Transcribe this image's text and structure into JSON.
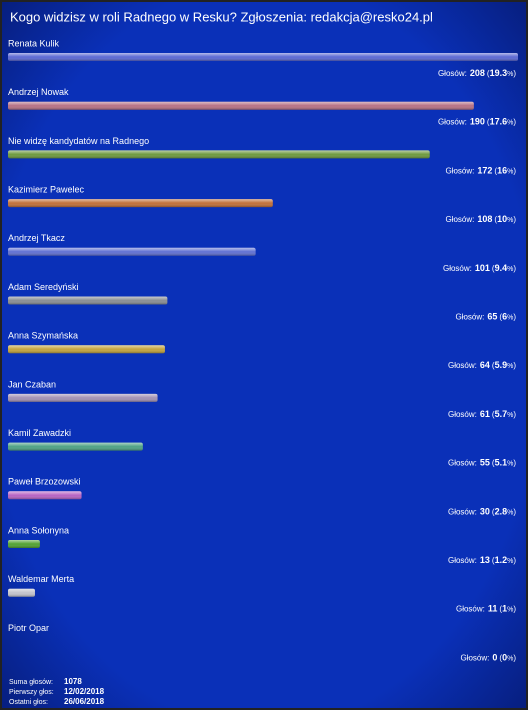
{
  "title": "Kogo widzisz w roli Radnego w Resku? Zgłoszenia: redakcja@resko24.pl",
  "votes_label": "Głosów:",
  "open": "(",
  "close": ")",
  "unit": "%",
  "options": [
    {
      "name": "Renata Kulik",
      "votes": 208,
      "percent": 19.3,
      "color": "#5b68d4"
    },
    {
      "name": "Andrzej Nowak",
      "votes": 190,
      "percent": 17.6,
      "color": "#b77285"
    },
    {
      "name": "Nie widzę kandydatów na Radnego",
      "votes": 172,
      "percent": 16,
      "color": "#6e9a3e"
    },
    {
      "name": "Kazimierz Pawelec",
      "votes": 108,
      "percent": 10,
      "color": "#c2703a"
    },
    {
      "name": "Andrzej Tkacz",
      "votes": 101,
      "percent": 9.4,
      "color": "#6070d2"
    },
    {
      "name": "Adam Seredyński",
      "votes": 65,
      "percent": 6,
      "color": "#8a8e94"
    },
    {
      "name": "Anna Szymańska",
      "votes": 64,
      "percent": 5.9,
      "color": "#c4a43e"
    },
    {
      "name": "Jan Czaban",
      "votes": 61,
      "percent": 5.7,
      "color": "#a392b4"
    },
    {
      "name": "Kamil Zawadzki",
      "votes": 55,
      "percent": 5.1,
      "color": "#4fa284"
    },
    {
      "name": "Paweł Brzozowski",
      "votes": 30,
      "percent": 2.8,
      "color": "#b864c4"
    },
    {
      "name": "Anna Sołonyna",
      "votes": 13,
      "percent": 1.2,
      "color": "#52a232"
    },
    {
      "name": "Waldemar Merta",
      "votes": 11,
      "percent": 1,
      "color": "#c4c4cc"
    },
    {
      "name": "Piotr Opar",
      "votes": 0,
      "percent": 0,
      "color": "#888888"
    }
  ],
  "summary": {
    "total_label": "Suma głosów:",
    "total": 1078,
    "first_label": "Pierwszy głos:",
    "first": "12/02/2018",
    "last_label": "Ostatni głos:",
    "last": "26/06/2018"
  }
}
